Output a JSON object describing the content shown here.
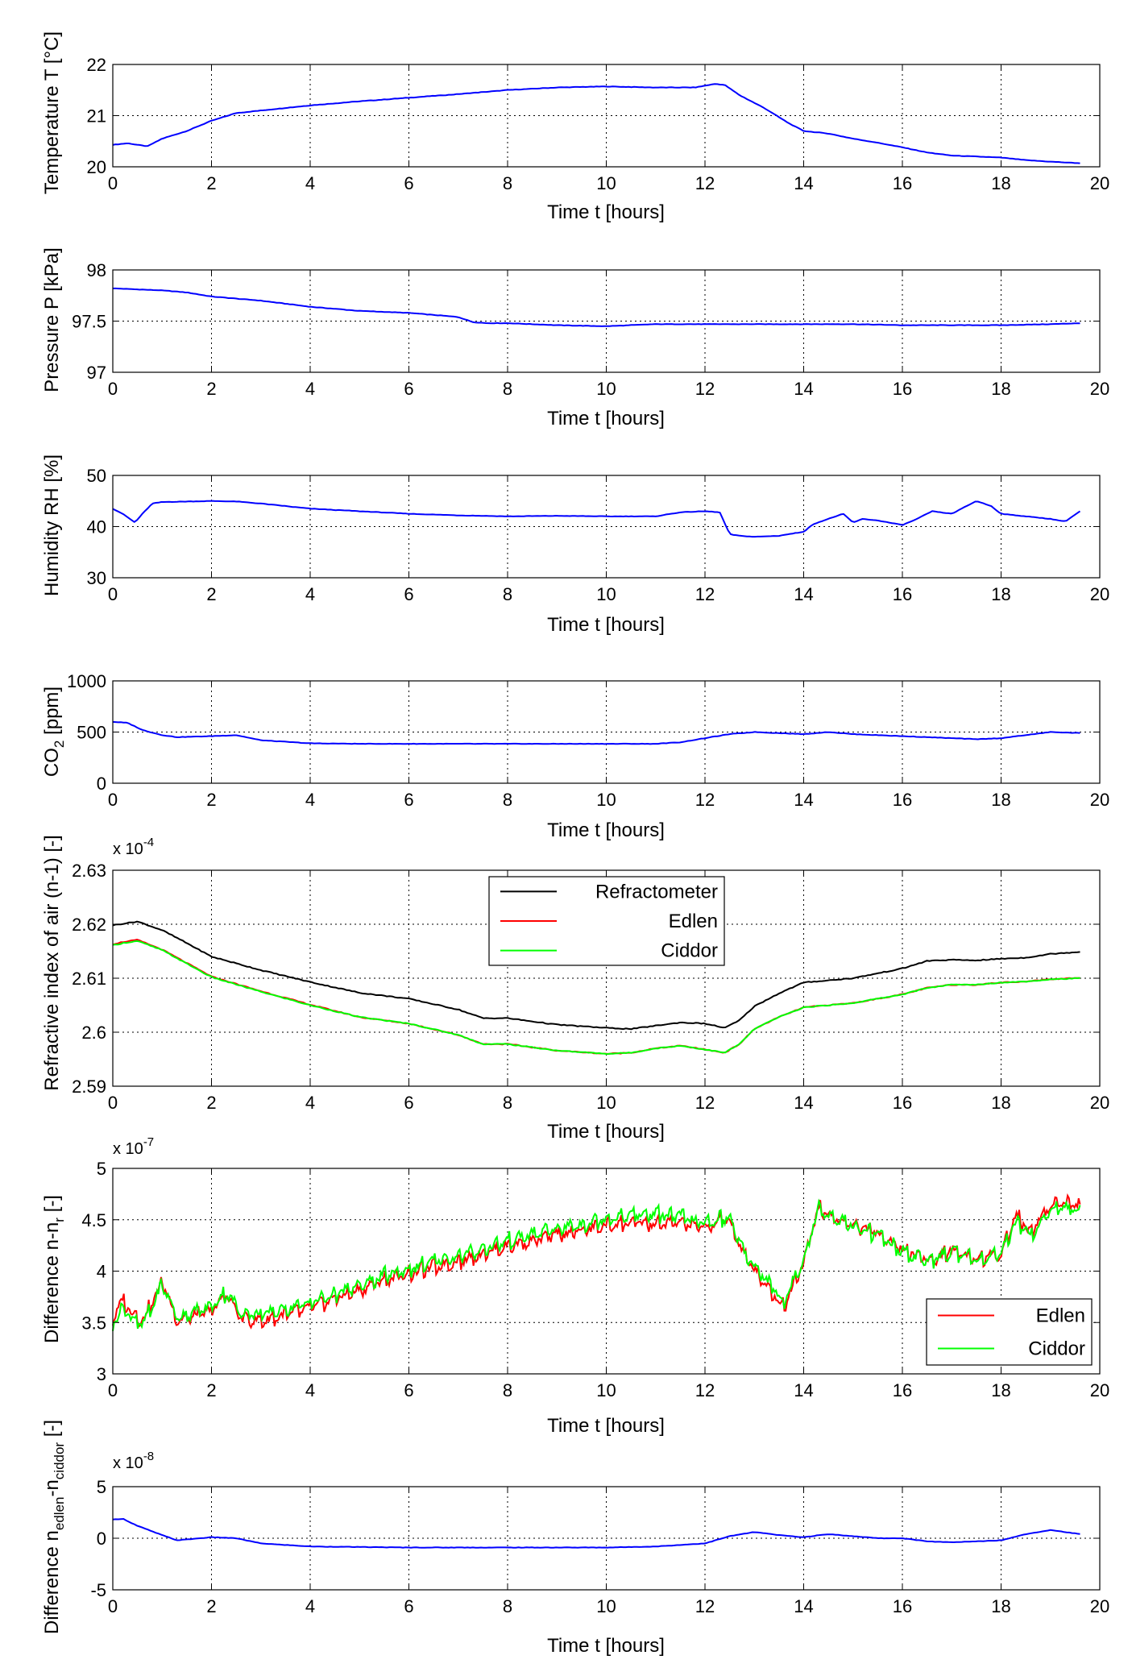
{
  "chart_data": [
    {
      "type": "line",
      "ylabel": "Temperature T [°C]",
      "xlabel": "Time t [hours]",
      "xlim": [
        0,
        20
      ],
      "ylim": [
        20,
        22
      ],
      "xticks": [
        "0",
        "2",
        "4",
        "6",
        "8",
        "10",
        "12",
        "14",
        "16",
        "18",
        "20"
      ],
      "yticks": [
        "20",
        "21",
        "22"
      ],
      "ytick_values": [
        20,
        21,
        22
      ],
      "exponent_label": "",
      "grid": true,
      "series": [
        {
          "name": "Temperature",
          "color": "#0000ff",
          "x": [
            0,
            0.3,
            0.7,
            1.0,
            1.5,
            2.0,
            2.5,
            3,
            4,
            5,
            6,
            7,
            8,
            9,
            10,
            11,
            11.8,
            12.2,
            12.4,
            12.7,
            13.2,
            13.7,
            14,
            14.5,
            15,
            15.5,
            16,
            16.5,
            17,
            17.5,
            18,
            18.5,
            19,
            19.6
          ],
          "y": [
            20.43,
            20.46,
            20.4,
            20.55,
            20.7,
            20.9,
            21.05,
            21.1,
            21.2,
            21.28,
            21.35,
            21.42,
            21.5,
            21.55,
            21.57,
            21.55,
            21.55,
            21.62,
            21.6,
            21.4,
            21.15,
            20.85,
            20.7,
            20.65,
            20.55,
            20.47,
            20.38,
            20.28,
            20.22,
            20.2,
            20.18,
            20.13,
            20.1,
            20.07
          ]
        }
      ]
    },
    {
      "type": "line",
      "ylabel": "Pressure P [kPa]",
      "xlabel": "Time t [hours]",
      "xlim": [
        0,
        20
      ],
      "ylim": [
        97,
        98
      ],
      "xticks": [
        "0",
        "2",
        "4",
        "6",
        "8",
        "10",
        "12",
        "14",
        "16",
        "18",
        "20"
      ],
      "yticks": [
        "97",
        "97.5",
        "98"
      ],
      "ytick_values": [
        97,
        97.5,
        98
      ],
      "exponent_label": "",
      "grid": true,
      "series": [
        {
          "name": "Pressure",
          "color": "#0000ff",
          "x": [
            0,
            0.5,
            1.0,
            1.5,
            2.0,
            3.0,
            4.0,
            5.0,
            6.0,
            7.0,
            7.3,
            7.6,
            8.0,
            9.0,
            10.0,
            11.0,
            12.0,
            13.0,
            14.0,
            15.0,
            16.0,
            17.0,
            18.0,
            19.0,
            19.6
          ],
          "y": [
            97.82,
            97.81,
            97.8,
            97.78,
            97.74,
            97.7,
            97.64,
            97.6,
            97.58,
            97.54,
            97.49,
            97.48,
            97.48,
            97.46,
            97.45,
            97.47,
            97.47,
            97.47,
            97.47,
            97.47,
            97.46,
            97.46,
            97.46,
            97.47,
            97.48
          ]
        }
      ]
    },
    {
      "type": "line",
      "ylabel": "Humidity RH [%]",
      "xlabel": "Time t [hours]",
      "xlim": [
        0,
        20
      ],
      "ylim": [
        30,
        50
      ],
      "xticks": [
        "0",
        "2",
        "4",
        "6",
        "8",
        "10",
        "12",
        "14",
        "16",
        "18",
        "20"
      ],
      "yticks": [
        "30",
        "40",
        "50"
      ],
      "ytick_values": [
        30,
        40,
        50
      ],
      "exponent_label": "",
      "grid": true,
      "series": [
        {
          "name": "Humidity",
          "color": "#0000ff",
          "x": [
            0,
            0.2,
            0.45,
            0.6,
            0.8,
            1.0,
            1.5,
            2.0,
            2.5,
            3,
            4,
            5,
            6,
            7,
            8,
            9,
            10,
            11,
            11.5,
            12,
            12.3,
            12.5,
            12.7,
            13,
            13.5,
            14,
            14.2,
            14.5,
            14.8,
            15,
            15.2,
            15.5,
            16,
            16.3,
            16.6,
            17,
            17.3,
            17.5,
            17.8,
            18,
            18.5,
            19,
            19.3,
            19.6
          ],
          "y": [
            43.5,
            42.5,
            40.8,
            42.5,
            44.5,
            44.8,
            44.9,
            45.0,
            44.9,
            44.5,
            43.5,
            43.0,
            42.5,
            42.2,
            42.0,
            42.1,
            42.0,
            42.0,
            42.8,
            43.0,
            42.8,
            38.5,
            38.2,
            38.0,
            38.2,
            39.0,
            40.5,
            41.5,
            42.5,
            40.8,
            41.5,
            41.2,
            40.3,
            41.5,
            43.0,
            42.5,
            44.0,
            45.0,
            44.0,
            42.5,
            42.0,
            41.5,
            41.0,
            43.0
          ]
        }
      ]
    },
    {
      "type": "line",
      "ylabel": "CO2 [ppm]",
      "xlabel": "Time t [hours]",
      "xlim": [
        0,
        20
      ],
      "ylim": [
        0,
        1000
      ],
      "xticks": [
        "0",
        "2",
        "4",
        "6",
        "8",
        "10",
        "12",
        "14",
        "16",
        "18",
        "20"
      ],
      "yticks": [
        "0",
        "500",
        "1000"
      ],
      "ytick_values": [
        0,
        500,
        1000
      ],
      "exponent_label": "",
      "grid": true,
      "series": [
        {
          "name": "CO2",
          "color": "#0000ff",
          "x": [
            0,
            0.3,
            0.6,
            1.0,
            1.3,
            2.0,
            2.5,
            3.0,
            4,
            5,
            6,
            7,
            8,
            9,
            10,
            11,
            11.5,
            12,
            12.5,
            13,
            14,
            14.5,
            15,
            15.5,
            16,
            16.5,
            17,
            17.5,
            18,
            18.5,
            19,
            19.6
          ],
          "y": [
            600,
            590,
            520,
            470,
            450,
            460,
            470,
            420,
            390,
            385,
            385,
            385,
            385,
            385,
            385,
            385,
            400,
            440,
            480,
            500,
            480,
            500,
            480,
            470,
            460,
            450,
            440,
            430,
            440,
            470,
            500,
            490
          ]
        }
      ]
    },
    {
      "type": "line",
      "ylabel": "Refractive index of air (n-1) [-]",
      "xlabel": "Time t [hours]",
      "xlim": [
        0,
        20
      ],
      "ylim": [
        2.59,
        2.63
      ],
      "xticks": [
        "0",
        "2",
        "4",
        "6",
        "8",
        "10",
        "12",
        "14",
        "16",
        "18",
        "20"
      ],
      "yticks": [
        "2.59",
        "2.6",
        "2.61",
        "2.62",
        "2.63"
      ],
      "ytick_values": [
        2.59,
        2.6,
        2.61,
        2.62,
        2.63
      ],
      "exponent_label": "x 10^-4",
      "exponent_base": "x 10",
      "exponent_power": "-4",
      "grid": true,
      "legend": {
        "position": "top-center",
        "entries": [
          "Refractometer",
          "Edlen",
          "Ciddor"
        ]
      },
      "series": [
        {
          "name": "Refractometer",
          "color": "#000000",
          "x": [
            0,
            0.2,
            0.5,
            1,
            1.5,
            2,
            3,
            4,
            5,
            6,
            7,
            7.5,
            8,
            9,
            10,
            10.5,
            11,
            11.5,
            12,
            12.4,
            12.7,
            13,
            13.5,
            14,
            15,
            16,
            16.5,
            17,
            17.5,
            18,
            18.5,
            19,
            19.6
          ],
          "y": [
            2.6198,
            2.6201,
            2.6205,
            2.6189,
            2.6165,
            2.614,
            2.6115,
            2.6093,
            2.6073,
            2.6062,
            2.6042,
            2.6026,
            2.6026,
            2.6014,
            2.6008,
            2.6006,
            2.6012,
            2.6018,
            2.6016,
            2.6008,
            2.6022,
            2.6048,
            2.6072,
            2.6092,
            2.61,
            2.6118,
            2.6132,
            2.6134,
            2.6133,
            2.6136,
            2.6138,
            2.6145,
            2.6149
          ]
        },
        {
          "name": "Edlen",
          "color": "#ff0000",
          "x": [
            0,
            0.2,
            0.5,
            1,
            1.5,
            2,
            3,
            4,
            5,
            6,
            7,
            7.5,
            8,
            9,
            10,
            10.5,
            11,
            11.5,
            12,
            12.4,
            12.7,
            13,
            13.5,
            14,
            15,
            16,
            16.5,
            17,
            17.5,
            18,
            18.5,
            19,
            19.6
          ],
          "y": [
            2.6163,
            2.6167,
            2.6171,
            2.6153,
            2.6128,
            2.6103,
            2.6076,
            2.6051,
            2.6028,
            2.6016,
            2.5995,
            2.5978,
            2.5978,
            2.5966,
            2.596,
            2.5962,
            2.597,
            2.5975,
            2.5968,
            2.5962,
            2.5978,
            2.6006,
            2.6028,
            2.6046,
            2.6054,
            2.607,
            2.6082,
            2.6088,
            2.6088,
            2.6092,
            2.6094,
            2.6098,
            2.6101
          ]
        },
        {
          "name": "Ciddor",
          "color": "#00ff00",
          "x": [
            0,
            0.2,
            0.5,
            1,
            1.5,
            2,
            3,
            4,
            5,
            6,
            7,
            7.5,
            8,
            9,
            10,
            10.5,
            11,
            11.5,
            12,
            12.4,
            12.7,
            13,
            13.5,
            14,
            15,
            16,
            16.5,
            17,
            17.5,
            18,
            18.5,
            19,
            19.6
          ],
          "y": [
            2.6161,
            2.6165,
            2.6169,
            2.6152,
            2.6127,
            2.6102,
            2.6075,
            2.605,
            2.6028,
            2.6016,
            2.5995,
            2.5978,
            2.5978,
            2.5966,
            2.596,
            2.5962,
            2.597,
            2.5975,
            2.5968,
            2.5962,
            2.5978,
            2.6006,
            2.6028,
            2.6046,
            2.6054,
            2.607,
            2.6082,
            2.6088,
            2.6088,
            2.6092,
            2.6094,
            2.6098,
            2.61
          ]
        }
      ]
    },
    {
      "type": "line",
      "ylabel": "Difference n-n_r [-]",
      "xlabel": "Time t [hours]",
      "xlim": [
        0,
        20
      ],
      "ylim": [
        3,
        5
      ],
      "xticks": [
        "0",
        "2",
        "4",
        "6",
        "8",
        "10",
        "12",
        "14",
        "16",
        "18",
        "20"
      ],
      "yticks": [
        "3",
        "3.5",
        "4",
        "4.5",
        "5"
      ],
      "ytick_values": [
        3,
        3.5,
        4,
        4.5,
        5
      ],
      "exponent_label": "x 10^-7",
      "exponent_base": "x 10",
      "exponent_power": "-7",
      "grid": true,
      "legend": {
        "position": "bottom-right",
        "entries": [
          "Edlen",
          "Ciddor"
        ]
      },
      "series": [
        {
          "name": "Edlen",
          "color": "#ff0000",
          "x": [
            0,
            0.2,
            0.4,
            0.6,
            0.8,
            1.0,
            1.1,
            1.3,
            1.6,
            2.0,
            2.3,
            2.6,
            3.0,
            3.5,
            4.0,
            4.5,
            5,
            5.5,
            6,
            6.5,
            7,
            7.5,
            8,
            8.5,
            9,
            9.5,
            10,
            10.5,
            11,
            11.5,
            12,
            12.3,
            12.5,
            12.8,
            13.2,
            13.6,
            13.8,
            14,
            14.3,
            14.5,
            15,
            15.5,
            16,
            16.3,
            16.6,
            17,
            17.5,
            18,
            18.3,
            18.6,
            19,
            19.3,
            19.6
          ],
          "y": [
            3.55,
            3.72,
            3.6,
            3.52,
            3.7,
            3.9,
            3.8,
            3.52,
            3.56,
            3.62,
            3.78,
            3.55,
            3.52,
            3.58,
            3.65,
            3.74,
            3.82,
            3.92,
            3.98,
            4.05,
            4.1,
            4.18,
            4.25,
            4.3,
            4.36,
            4.4,
            4.45,
            4.48,
            4.46,
            4.48,
            4.42,
            4.5,
            4.5,
            4.15,
            3.9,
            3.65,
            3.9,
            4.1,
            4.62,
            4.55,
            4.45,
            4.38,
            4.22,
            4.16,
            4.1,
            4.22,
            4.12,
            4.18,
            4.55,
            4.38,
            4.66,
            4.68,
            4.65
          ]
        },
        {
          "name": "Ciddor",
          "color": "#00ff00",
          "x": [
            0,
            0.2,
            0.4,
            0.6,
            0.8,
            1.0,
            1.1,
            1.3,
            1.6,
            2.0,
            2.3,
            2.6,
            3.0,
            3.5,
            4.0,
            4.5,
            5,
            5.5,
            6,
            6.5,
            7,
            7.5,
            8,
            8.5,
            9,
            9.5,
            10,
            10.5,
            11,
            11.5,
            12,
            12.3,
            12.5,
            12.8,
            13.2,
            13.6,
            13.8,
            14,
            14.3,
            14.5,
            15,
            15.5,
            16,
            16.3,
            16.6,
            17,
            17.5,
            18,
            18.3,
            18.6,
            19,
            19.3,
            19.6
          ],
          "y": [
            3.5,
            3.65,
            3.55,
            3.48,
            3.66,
            3.88,
            3.78,
            3.55,
            3.6,
            3.66,
            3.8,
            3.6,
            3.58,
            3.64,
            3.7,
            3.78,
            3.86,
            3.96,
            4.02,
            4.1,
            4.15,
            4.22,
            4.3,
            4.36,
            4.42,
            4.46,
            4.52,
            4.55,
            4.56,
            4.54,
            4.46,
            4.52,
            4.52,
            4.18,
            3.95,
            3.7,
            3.92,
            4.12,
            4.62,
            4.55,
            4.44,
            4.36,
            4.2,
            4.14,
            4.1,
            4.2,
            4.12,
            4.16,
            4.5,
            4.36,
            4.6,
            4.62,
            4.6
          ]
        }
      ]
    },
    {
      "type": "line",
      "ylabel": "Difference n_edlen-n_ciddor [-]",
      "xlabel": "Time t [hours]",
      "xlim": [
        0,
        20
      ],
      "ylim": [
        -5,
        5
      ],
      "xticks": [
        "0",
        "2",
        "4",
        "6",
        "8",
        "10",
        "12",
        "14",
        "16",
        "18",
        "20"
      ],
      "yticks": [
        "-5",
        "0",
        "5"
      ],
      "ytick_values": [
        -5,
        0,
        5
      ],
      "exponent_label": "x 10^-8",
      "exponent_base": "x 10",
      "exponent_power": "-8",
      "grid": true,
      "series": [
        {
          "name": "Difference",
          "color": "#0000ff",
          "x": [
            0,
            0.2,
            0.5,
            1.0,
            1.3,
            2.0,
            2.5,
            3,
            4,
            5,
            6,
            7,
            8,
            9,
            10,
            11,
            12,
            12.5,
            13,
            13.5,
            14,
            14.5,
            15,
            15.5,
            16,
            16.5,
            17,
            18,
            18.5,
            19,
            19.6
          ],
          "y": [
            1.8,
            1.9,
            1.2,
            0.3,
            -0.2,
            0.1,
            0.0,
            -0.5,
            -0.8,
            -0.85,
            -0.9,
            -0.9,
            -0.9,
            -0.9,
            -0.9,
            -0.8,
            -0.5,
            0.2,
            0.6,
            0.3,
            0.1,
            0.4,
            0.2,
            0.0,
            0.0,
            -0.3,
            -0.4,
            -0.2,
            0.4,
            0.8,
            0.4
          ]
        }
      ]
    }
  ]
}
